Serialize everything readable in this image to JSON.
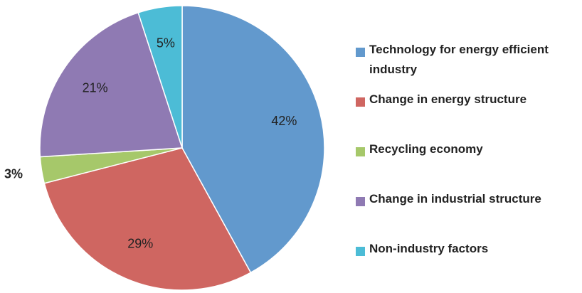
{
  "chart_data": {
    "type": "pie",
    "categories": [
      "Technology for energy efficient industry",
      "Change in energy structure",
      "Recycling economy",
      "Change in industrial structure",
      "Non-industry factors"
    ],
    "values": [
      42,
      29,
      3,
      21,
      5
    ],
    "value_labels": [
      "42%",
      "29%",
      "3%",
      "21%",
      "5%"
    ],
    "colors": [
      "#6299cd",
      "#cf6661",
      "#a6c86a",
      "#8f7ab3",
      "#4cbcd6"
    ],
    "legend": "right"
  }
}
